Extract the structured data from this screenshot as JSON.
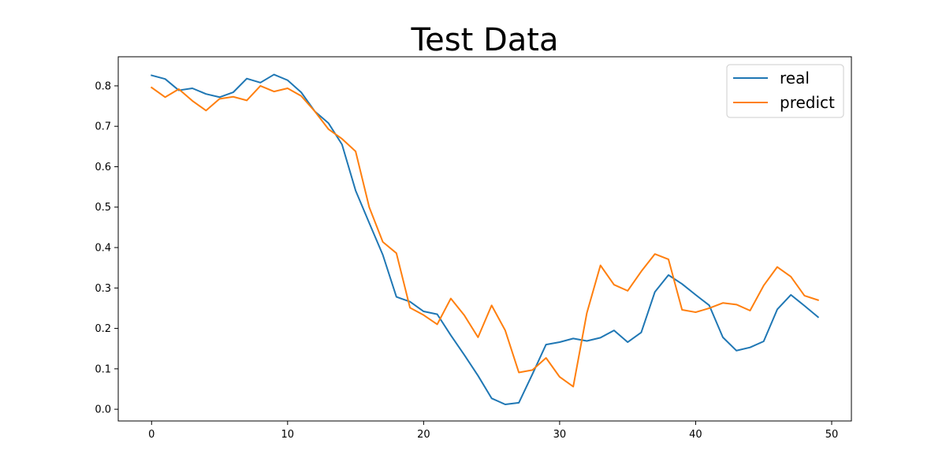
{
  "chart_data": {
    "type": "line",
    "title": "Test Data",
    "xlabel": "",
    "ylabel": "",
    "xlim": [
      -2.45,
      51.45
    ],
    "ylim": [
      -0.029,
      0.872
    ],
    "xticks": [
      0,
      10,
      20,
      30,
      40,
      50
    ],
    "yticks": [
      0.0,
      0.1,
      0.2,
      0.3,
      0.4,
      0.5,
      0.6,
      0.7,
      0.8
    ],
    "grid": false,
    "legend_position": "top-right",
    "x": [
      0,
      1,
      2,
      3,
      4,
      5,
      6,
      7,
      8,
      9,
      10,
      11,
      12,
      13,
      14,
      15,
      16,
      17,
      18,
      19,
      20,
      21,
      22,
      23,
      24,
      25,
      26,
      27,
      28,
      29,
      30,
      31,
      32,
      33,
      34,
      35,
      36,
      37,
      38,
      39,
      40,
      41,
      42,
      43,
      44,
      45,
      46,
      47,
      48,
      49
    ],
    "series": [
      {
        "name": "real",
        "color": "#1f77b4",
        "values": [
          0.826,
          0.817,
          0.789,
          0.794,
          0.78,
          0.772,
          0.784,
          0.818,
          0.808,
          0.828,
          0.814,
          0.784,
          0.737,
          0.708,
          0.655,
          0.541,
          0.461,
          0.382,
          0.278,
          0.266,
          0.242,
          0.235,
          0.183,
          0.134,
          0.083,
          0.027,
          0.012,
          0.016,
          0.087,
          0.16,
          0.166,
          0.175,
          0.169,
          0.177,
          0.195,
          0.166,
          0.19,
          0.29,
          0.332,
          0.31,
          0.283,
          0.257,
          0.178,
          0.145,
          0.153,
          0.168,
          0.247,
          0.283,
          0.256,
          0.228
        ]
      },
      {
        "name": "predict",
        "color": "#ff7f0e",
        "values": [
          0.796,
          0.772,
          0.792,
          0.763,
          0.739,
          0.768,
          0.773,
          0.764,
          0.8,
          0.786,
          0.794,
          0.775,
          0.737,
          0.693,
          0.669,
          0.638,
          0.5,
          0.414,
          0.386,
          0.251,
          0.233,
          0.21,
          0.274,
          0.232,
          0.178,
          0.257,
          0.195,
          0.091,
          0.097,
          0.127,
          0.08,
          0.056,
          0.238,
          0.356,
          0.308,
          0.293,
          0.341,
          0.384,
          0.371,
          0.246,
          0.24,
          0.25,
          0.263,
          0.259,
          0.244,
          0.306,
          0.352,
          0.328,
          0.281,
          0.27
        ]
      }
    ]
  }
}
